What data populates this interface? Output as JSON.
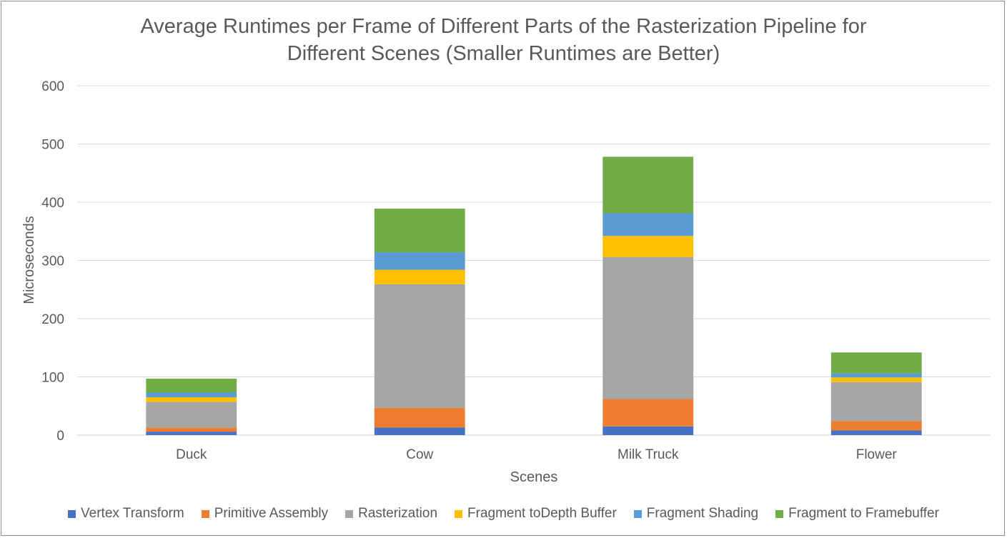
{
  "chart_data": {
    "type": "bar",
    "stacked": true,
    "title_lines": [
      "Average Runtimes per Frame of Different Parts of the Rasterization Pipeline for",
      "Different Scenes (Smaller Runtimes are Better)"
    ],
    "xlabel": "Scenes",
    "ylabel": "Microseconds",
    "ylim": [
      0,
      600
    ],
    "yticks": [
      "0",
      "100",
      "200",
      "300",
      "400",
      "500",
      "600"
    ],
    "categories": [
      "Duck",
      "Cow",
      "Milk Truck",
      "Flower"
    ],
    "grid": true,
    "legend_position": "bottom",
    "series": [
      {
        "name": "Vertex Transform",
        "color": "#4472C4",
        "values": [
          6,
          13,
          15,
          8
        ]
      },
      {
        "name": "Primitive Assembly",
        "color": "#ED7D31",
        "values": [
          7,
          34,
          47,
          16
        ]
      },
      {
        "name": "Rasterization",
        "color": "#A5A5A5",
        "values": [
          44,
          212,
          244,
          67
        ]
      },
      {
        "name": "Fragment toDepth Buffer",
        "color": "#FFC000",
        "values": [
          8,
          25,
          36,
          8
        ]
      },
      {
        "name": "Fragment Shading",
        "color": "#5B9BD5",
        "values": [
          8,
          30,
          39,
          7
        ]
      },
      {
        "name": "Fragment to Framebuffer",
        "color": "#70AD47",
        "values": [
          24,
          75,
          97,
          36
        ]
      }
    ]
  }
}
